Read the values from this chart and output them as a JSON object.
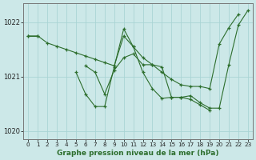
{
  "title": "Graphe pression niveau de la mer (hPa)",
  "bg_color": "#cce8e8",
  "grid_color": "#aad4d4",
  "line_color": "#2d6e2d",
  "ylim": [
    1019.85,
    1022.35
  ],
  "xlim": [
    -0.5,
    23.5
  ],
  "yticks": [
    1020,
    1021,
    1022
  ],
  "xticks": [
    0,
    1,
    2,
    3,
    4,
    5,
    6,
    7,
    8,
    9,
    10,
    11,
    12,
    13,
    14,
    15,
    16,
    17,
    18,
    19,
    20,
    21,
    22,
    23
  ],
  "series1": [
    1021.75,
    1021.75,
    1021.62,
    1021.56,
    1021.5,
    1021.44,
    1021.38,
    1021.32,
    1021.26,
    1021.2,
    1021.75,
    1021.55,
    1021.35,
    1021.22,
    1021.08,
    1020.95,
    1020.85,
    1020.82,
    1020.82,
    1020.78,
    1021.6,
    1021.9,
    1022.15,
    null
  ],
  "series2": [
    null,
    null,
    null,
    null,
    null,
    1021.08,
    1020.68,
    1020.45,
    1020.45,
    1021.18,
    1021.88,
    1021.55,
    1021.08,
    1020.78,
    1020.6,
    1020.62,
    1020.62,
    1020.58,
    1020.48,
    1020.38,
    null,
    null,
    null,
    null
  ],
  "series3": [
    1021.75,
    1021.75,
    null,
    null,
    null,
    null,
    1021.2,
    1021.08,
    1020.68,
    1021.12,
    1021.35,
    1021.42,
    1021.22,
    1021.22,
    1021.18,
    1020.62,
    1020.62,
    1020.65,
    1020.52,
    1020.42,
    1020.42,
    1021.22,
    1021.95,
    1022.22
  ]
}
